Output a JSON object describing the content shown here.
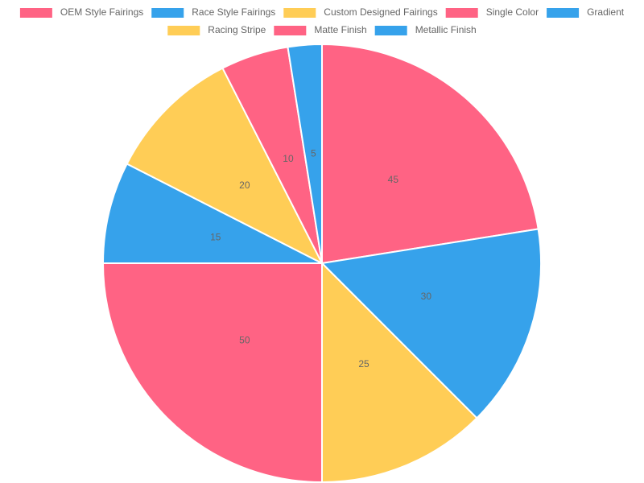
{
  "chart_data": {
    "type": "pie",
    "categories": [
      "OEM Style Fairings",
      "Race Style Fairings",
      "Custom Designed Fairings",
      "Single Color",
      "Gradient",
      "Racing Stripe",
      "Matte Finish",
      "Metallic Finish"
    ],
    "values": [
      45,
      30,
      25,
      50,
      15,
      20,
      10,
      5
    ],
    "colors": [
      "#ff6384",
      "#36a2eb",
      "#ffcd56",
      "#ff6384",
      "#36a2eb",
      "#ffcd56",
      "#ff6384",
      "#36a2eb"
    ]
  }
}
